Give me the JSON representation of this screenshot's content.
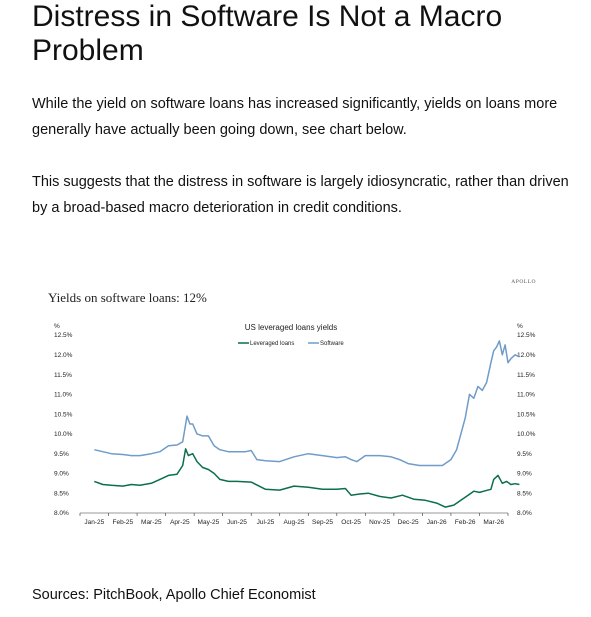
{
  "article": {
    "title": "Distress in Software Is Not a Macro Problem",
    "paragraph1": "While the yield on software loans has increased significantly, yields on loans more generally have actually been going down, see chart below.",
    "paragraph2": "This suggests that the distress in software is largely idiosyncratic, rather than driven by a broad-based macro deterioration in credit conditions.",
    "sources": "Sources: PitchBook, Apollo Chief Economist"
  },
  "chart_data": {
    "type": "line",
    "brand": "APOLLO",
    "title": "Yields on software loans: 12%",
    "subtitle": "US leveraged loans yields",
    "ylabel_left": "%",
    "ylabel_right": "%",
    "ylim": [
      8.0,
      12.5
    ],
    "yticks": [
      "8.0%",
      "8.5%",
      "9.0%",
      "9.5%",
      "10.0%",
      "10.5%",
      "11.0%",
      "11.5%",
      "12.0%",
      "12.5%"
    ],
    "xticks": [
      "Jan-25",
      "Feb-25",
      "Mar-25",
      "Apr-25",
      "May-25",
      "Jun-25",
      "Jul-25",
      "Aug-25",
      "Sep-25",
      "Oct-25",
      "Nov-25",
      "Dec-25",
      "Jan-26",
      "Feb-26",
      "Mar-26"
    ],
    "legend_position": "top-center",
    "grid": false,
    "series": [
      {
        "name": "Leveraged loans",
        "color": "#0b6e4f",
        "x": [
          0,
          0.3,
          0.6,
          1.0,
          1.3,
          1.6,
          2.0,
          2.3,
          2.6,
          2.9,
          3.1,
          3.2,
          3.3,
          3.45,
          3.6,
          3.8,
          4.0,
          4.2,
          4.4,
          4.7,
          5.0,
          5.5,
          6.0,
          6.5,
          7.0,
          7.5,
          8.0,
          8.5,
          8.8,
          9.0,
          9.3,
          9.6,
          10.0,
          10.4,
          10.8,
          11.2,
          11.6,
          12.0,
          12.3,
          12.6,
          12.9,
          13.1,
          13.3,
          13.5,
          13.7,
          13.9,
          14.0,
          14.15,
          14.3,
          14.45,
          14.6,
          14.75,
          14.9
        ],
        "y": [
          8.8,
          8.72,
          8.7,
          8.68,
          8.72,
          8.7,
          8.75,
          8.85,
          8.95,
          8.98,
          9.2,
          9.62,
          9.45,
          9.5,
          9.3,
          9.15,
          9.1,
          9.0,
          8.85,
          8.8,
          8.8,
          8.78,
          8.6,
          8.58,
          8.68,
          8.65,
          8.6,
          8.6,
          8.62,
          8.45,
          8.48,
          8.5,
          8.42,
          8.38,
          8.45,
          8.35,
          8.32,
          8.25,
          8.15,
          8.2,
          8.35,
          8.45,
          8.55,
          8.52,
          8.56,
          8.6,
          8.85,
          8.95,
          8.75,
          8.8,
          8.72,
          8.74,
          8.72
        ]
      },
      {
        "name": "Software",
        "color": "#6f9cc8",
        "x": [
          0,
          0.3,
          0.6,
          1.0,
          1.3,
          1.6,
          2.0,
          2.3,
          2.6,
          2.9,
          3.1,
          3.25,
          3.35,
          3.45,
          3.6,
          3.8,
          4.0,
          4.2,
          4.4,
          4.7,
          5.0,
          5.3,
          5.5,
          5.7,
          6.0,
          6.5,
          7.0,
          7.5,
          8.0,
          8.5,
          8.8,
          9.0,
          9.2,
          9.5,
          10.0,
          10.4,
          10.7,
          11.0,
          11.4,
          11.8,
          12.2,
          12.5,
          12.7,
          12.85,
          13.0,
          13.15,
          13.3,
          13.45,
          13.6,
          13.75,
          13.9,
          14.0,
          14.1,
          14.2,
          14.3,
          14.4,
          14.5,
          14.6,
          14.75,
          14.9
        ],
        "y": [
          9.6,
          9.55,
          9.5,
          9.48,
          9.45,
          9.45,
          9.5,
          9.55,
          9.7,
          9.72,
          9.8,
          10.45,
          10.25,
          10.25,
          10.0,
          9.95,
          9.95,
          9.7,
          9.6,
          9.55,
          9.55,
          9.55,
          9.58,
          9.35,
          9.32,
          9.3,
          9.42,
          9.5,
          9.45,
          9.4,
          9.42,
          9.35,
          9.3,
          9.45,
          9.45,
          9.42,
          9.35,
          9.25,
          9.2,
          9.2,
          9.2,
          9.35,
          9.6,
          10.0,
          10.4,
          11.0,
          10.9,
          11.2,
          11.1,
          11.3,
          11.8,
          12.1,
          12.2,
          12.35,
          12.0,
          12.25,
          11.8,
          11.9,
          12.0,
          11.95
        ]
      }
    ]
  }
}
